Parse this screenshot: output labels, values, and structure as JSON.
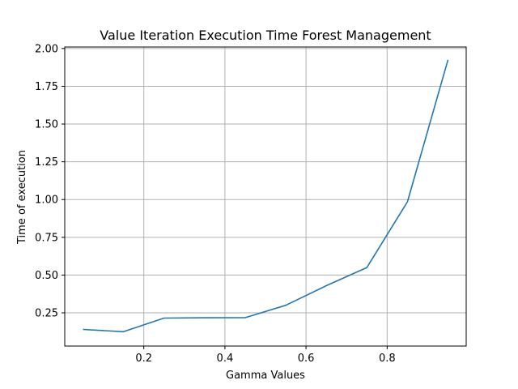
{
  "chart_data": {
    "type": "line",
    "title": "Value Iteration Execution Time Forest Management",
    "xlabel": "Gamma Values",
    "ylabel": "Time of execution",
    "xlim": [
      0.005,
      0.995
    ],
    "ylim": [
      0.03,
      2.01
    ],
    "xticks": [
      0.2,
      0.4,
      0.6,
      0.8
    ],
    "xtick_labels": [
      "0.2",
      "0.4",
      "0.6",
      "0.8"
    ],
    "yticks": [
      0.25,
      0.5,
      0.75,
      1.0,
      1.25,
      1.5,
      1.75,
      2.0
    ],
    "ytick_labels": [
      "0.25",
      "0.50",
      "0.75",
      "1.00",
      "1.25",
      "1.50",
      "1.75",
      "2.00"
    ],
    "grid": true,
    "series": [
      {
        "color": "#1f77b4",
        "x": [
          0.05,
          0.15,
          0.25,
          0.35,
          0.45,
          0.55,
          0.65,
          0.75,
          0.85,
          0.95
        ],
        "y": [
          0.14,
          0.125,
          0.215,
          0.217,
          0.218,
          0.3,
          0.43,
          0.55,
          0.985,
          1.925
        ]
      }
    ]
  }
}
